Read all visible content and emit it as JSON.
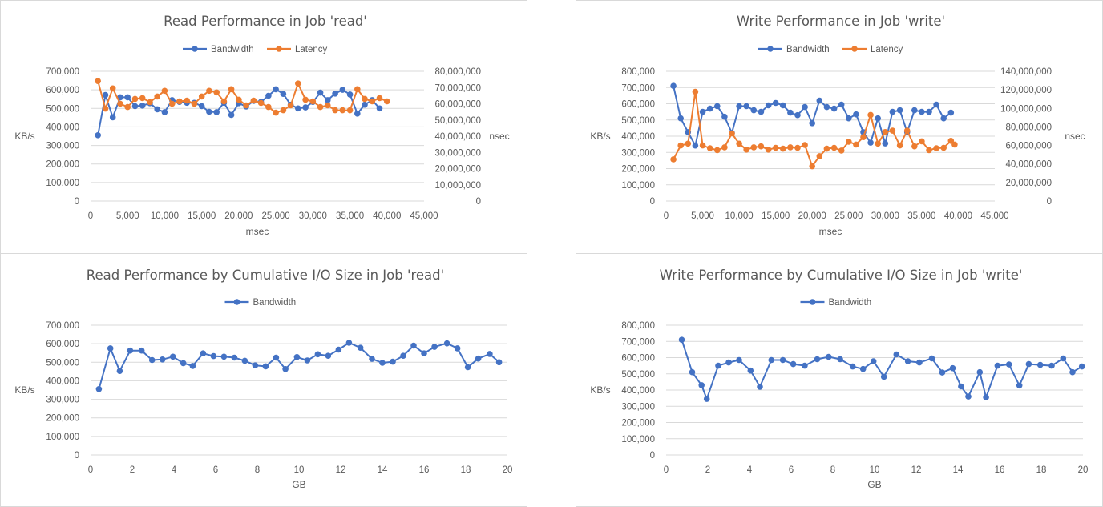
{
  "colors": {
    "bandwidth": "#4472C4",
    "latency": "#ED7D31",
    "grid": "#d9d9d9",
    "text": "#595959"
  },
  "chart_data": [
    {
      "type": "line",
      "title": "Read Performance in Job 'read'",
      "xlabel": "msec",
      "ylabel": "KB/s",
      "y2label": "nsec",
      "xlim": [
        0,
        45000
      ],
      "xticks": [
        0,
        5000,
        10000,
        15000,
        20000,
        25000,
        30000,
        35000,
        40000,
        45000
      ],
      "ylim": [
        0,
        700000
      ],
      "yticks": [
        0,
        100000,
        200000,
        300000,
        400000,
        500000,
        600000,
        700000
      ],
      "y2lim": [
        0,
        80000000
      ],
      "y2ticks": [
        0,
        10000000,
        20000000,
        30000000,
        40000000,
        50000000,
        60000000,
        70000000,
        80000000
      ],
      "grid": true,
      "legend": "top",
      "series": [
        {
          "name": "Bandwidth",
          "axis": "left",
          "x": [
            1000,
            2000,
            3000,
            4000,
            5000,
            6000,
            7000,
            8000,
            9000,
            10000,
            11000,
            12000,
            13000,
            14000,
            15000,
            16000,
            17000,
            18000,
            19000,
            20000,
            21000,
            22000,
            23000,
            24000,
            25000,
            26000,
            27000,
            28000,
            29000,
            30000,
            31000,
            32000,
            33000,
            34000,
            35000,
            36000,
            37000,
            38000,
            39000
          ],
          "y": [
            355000,
            572000,
            452000,
            560000,
            560000,
            512000,
            515000,
            528000,
            495000,
            480000,
            545000,
            535000,
            530000,
            530000,
            512000,
            482000,
            480000,
            530000,
            465000,
            528000,
            510000,
            540000,
            535000,
            568000,
            603000,
            578000,
            520000,
            500000,
            505000,
            535000,
            585000,
            545000,
            580000,
            600000,
            575000,
            472000,
            520000,
            545000,
            500000
          ]
        },
        {
          "name": "Latency",
          "axis": "right",
          "x": [
            1000,
            2000,
            3000,
            4000,
            5000,
            6000,
            7000,
            8000,
            9000,
            10000,
            11000,
            12000,
            13000,
            14000,
            15000,
            16000,
            17000,
            18000,
            19000,
            20000,
            21000,
            22000,
            23000,
            24000,
            25000,
            26000,
            27000,
            28000,
            29000,
            30000,
            31000,
            32000,
            33000,
            34000,
            35000,
            36000,
            37000,
            38000,
            39000,
            40000
          ],
          "y": [
            74000000,
            57000000,
            69500000,
            60000000,
            58000000,
            63000000,
            63500000,
            61000000,
            64500000,
            68000000,
            60000000,
            61500000,
            62000000,
            60000000,
            64500000,
            68000000,
            67000000,
            61500000,
            69000000,
            62500000,
            59000000,
            62000000,
            60500000,
            58000000,
            54500000,
            56000000,
            59000000,
            72500000,
            62500000,
            61500000,
            58000000,
            59000000,
            56000000,
            56000000,
            56000000,
            69000000,
            63000000,
            61500000,
            63500000,
            61500000
          ]
        }
      ]
    },
    {
      "type": "line",
      "title": "Write Performance in Job 'write'",
      "xlabel": "msec",
      "ylabel": "KB/s",
      "y2label": "nsec",
      "xlim": [
        0,
        45000
      ],
      "xticks": [
        0,
        5000,
        10000,
        15000,
        20000,
        25000,
        30000,
        35000,
        40000,
        45000
      ],
      "ylim": [
        0,
        800000
      ],
      "yticks": [
        0,
        100000,
        200000,
        300000,
        400000,
        500000,
        600000,
        700000,
        800000
      ],
      "y2lim": [
        0,
        140000000
      ],
      "y2ticks": [
        0,
        20000000,
        40000000,
        60000000,
        80000000,
        100000000,
        120000000,
        140000000
      ],
      "grid": true,
      "legend": "top",
      "series": [
        {
          "name": "Bandwidth",
          "axis": "left",
          "x": [
            1000,
            2000,
            3000,
            4000,
            5000,
            6000,
            7000,
            8000,
            9000,
            10000,
            11000,
            12000,
            13000,
            14000,
            15000,
            16000,
            17000,
            18000,
            19000,
            20000,
            21000,
            22000,
            23000,
            24000,
            25000,
            26000,
            27000,
            28000,
            29000,
            30000,
            31000,
            32000,
            33000,
            34000,
            35000,
            36000,
            37000,
            38000,
            39000
          ],
          "y": [
            710000,
            510000,
            425000,
            342000,
            550000,
            570000,
            585000,
            520000,
            420000,
            585000,
            585000,
            560000,
            550000,
            590000,
            605000,
            590000,
            545000,
            530000,
            580000,
            480000,
            620000,
            580000,
            570000,
            595000,
            510000,
            535000,
            425000,
            360000,
            510000,
            355000,
            550000,
            560000,
            425000,
            560000,
            550000,
            550000,
            595000,
            510000,
            545000
          ]
        },
        {
          "name": "Latency",
          "axis": "right",
          "x": [
            1000,
            2000,
            3000,
            4000,
            5000,
            6000,
            7000,
            8000,
            9000,
            10000,
            11000,
            12000,
            13000,
            14000,
            15000,
            16000,
            17000,
            18000,
            19000,
            20000,
            21000,
            22000,
            23000,
            24000,
            25000,
            26000,
            27000,
            28000,
            29000,
            30000,
            31000,
            32000,
            33000,
            34000,
            35000,
            36000,
            37000,
            38000,
            39000,
            39500
          ],
          "y": [
            45000000,
            60000000,
            62000000,
            118000000,
            60000000,
            57000000,
            55000000,
            58000000,
            73000000,
            62000000,
            55500000,
            58000000,
            59000000,
            55500000,
            57500000,
            56500000,
            58000000,
            57500000,
            60500000,
            37500000,
            48500000,
            56500000,
            57500000,
            54500000,
            64000000,
            61000000,
            69000000,
            93000000,
            62000000,
            74500000,
            76000000,
            60000000,
            76000000,
            59000000,
            64500000,
            55000000,
            57000000,
            57500000,
            65000000,
            61000000
          ]
        }
      ]
    },
    {
      "type": "line",
      "title": "Read Performance by Cumulative I/O Size in Job 'read'",
      "xlabel": "GB",
      "ylabel": "KB/s",
      "xlim": [
        0,
        20
      ],
      "xticks": [
        0,
        2,
        4,
        6,
        8,
        10,
        12,
        14,
        16,
        18,
        20
      ],
      "ylim": [
        0,
        700000
      ],
      "yticks": [
        0,
        100000,
        200000,
        300000,
        400000,
        500000,
        600000,
        700000
      ],
      "grid": true,
      "legend": "top",
      "series": [
        {
          "name": "Bandwidth",
          "axis": "left",
          "x": [
            0.4,
            0.95,
            1.4,
            1.9,
            2.45,
            2.95,
            3.45,
            3.95,
            4.45,
            4.9,
            5.4,
            5.9,
            6.4,
            6.9,
            7.4,
            7.9,
            8.4,
            8.9,
            9.35,
            9.9,
            10.4,
            10.9,
            11.4,
            11.9,
            12.4,
            12.95,
            13.5,
            14.0,
            14.5,
            15.0,
            15.5,
            16.0,
            16.5,
            17.1,
            17.6,
            18.1,
            18.6,
            19.15,
            19.6
          ],
          "y": [
            355000,
            575000,
            453000,
            563000,
            563000,
            512000,
            515000,
            530000,
            495000,
            480000,
            548000,
            533000,
            530000,
            525000,
            508000,
            483000,
            478000,
            525000,
            463000,
            528000,
            510000,
            543000,
            535000,
            568000,
            605000,
            578000,
            518000,
            497000,
            503000,
            535000,
            590000,
            548000,
            583000,
            602000,
            575000,
            473000,
            520000,
            545000,
            500000
          ]
        }
      ]
    },
    {
      "type": "line",
      "title": "Write Performance by Cumulative I/O Size in Job 'write'",
      "xlabel": "GB",
      "ylabel": "KB/s",
      "xlim": [
        0,
        20
      ],
      "xticks": [
        0,
        2,
        4,
        6,
        8,
        10,
        12,
        14,
        16,
        18,
        20
      ],
      "ylim": [
        0,
        800000
      ],
      "yticks": [
        0,
        100000,
        200000,
        300000,
        400000,
        500000,
        600000,
        700000,
        800000
      ],
      "grid": true,
      "legend": "top",
      "series": [
        {
          "name": "Bandwidth",
          "axis": "left",
          "x": [
            0.75,
            1.25,
            1.7,
            1.95,
            2.5,
            3.0,
            3.5,
            4.05,
            4.5,
            5.05,
            5.6,
            6.1,
            6.65,
            7.25,
            7.8,
            8.35,
            8.95,
            9.45,
            9.95,
            10.45,
            11.05,
            11.6,
            12.15,
            12.75,
            13.25,
            13.75,
            14.15,
            14.5,
            15.05,
            15.35,
            15.9,
            16.45,
            16.95,
            17.4,
            17.95,
            18.5,
            19.05,
            19.5,
            19.95
          ],
          "y": [
            710000,
            510000,
            430000,
            345000,
            550000,
            570000,
            585000,
            520000,
            420000,
            585000,
            585000,
            560000,
            550000,
            590000,
            605000,
            590000,
            545000,
            530000,
            578000,
            482000,
            620000,
            578000,
            570000,
            595000,
            508000,
            535000,
            422000,
            360000,
            510000,
            355000,
            550000,
            558000,
            428000,
            560000,
            555000,
            550000,
            595000,
            510000,
            545000
          ]
        }
      ]
    }
  ]
}
